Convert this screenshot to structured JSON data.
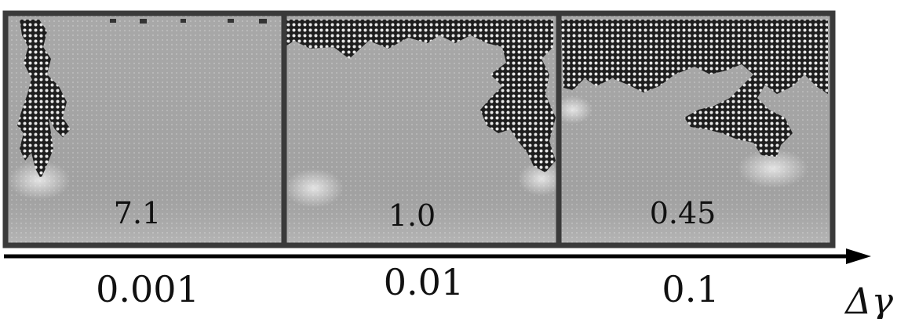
{
  "colors": {
    "frame": "#3a3a3a",
    "background_gray": "#a9a9a9",
    "crack_fill": "#2f2f2f",
    "arrow": "#000000"
  },
  "panels": [
    {
      "value_label": "7.1"
    },
    {
      "value_label": "1.0"
    },
    {
      "value_label": "0.45"
    }
  ],
  "axis": {
    "tick_labels": [
      "0.001",
      "0.01",
      "0.1"
    ],
    "title": "Δγ"
  }
}
